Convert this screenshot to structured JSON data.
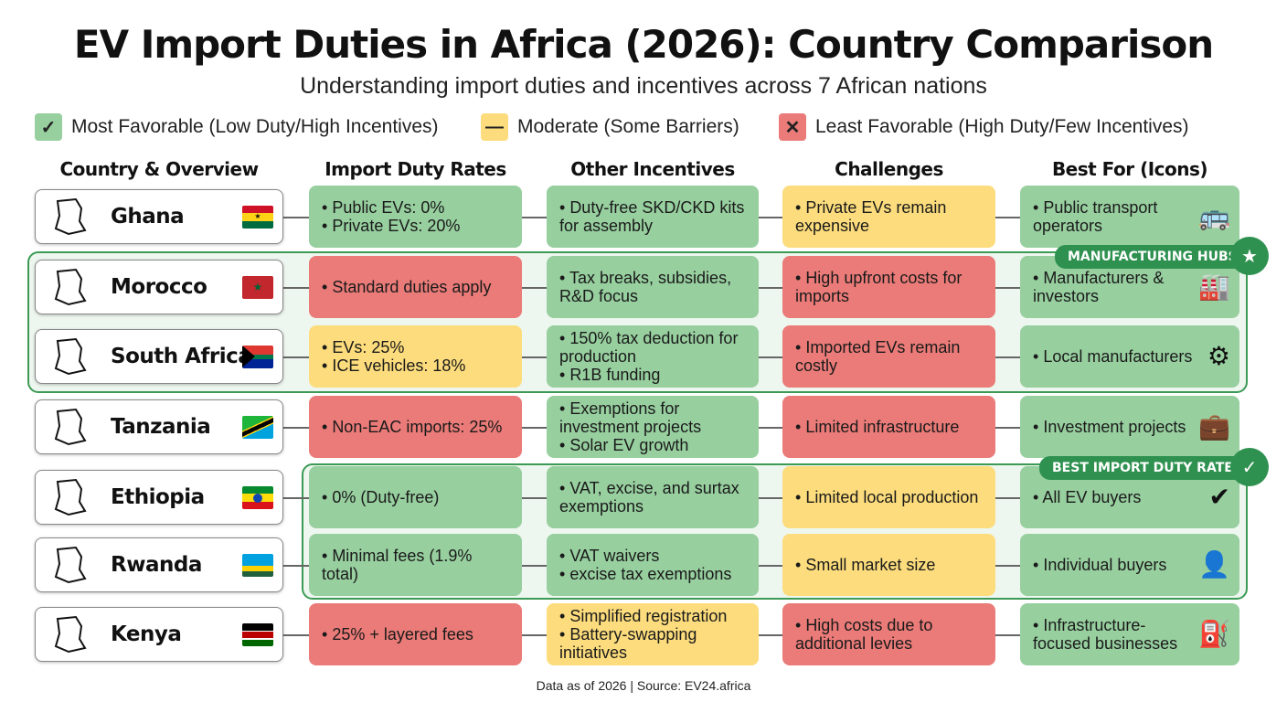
{
  "title": "EV Import Duties in Africa (2026): Country Comparison",
  "subtitle": "Understanding import duties and incentives across 7 African nations",
  "legend": [
    {
      "label": "Most Favorable (Low Duty/High Incentives)",
      "symbol": "✓",
      "color": "#97cf9f"
    },
    {
      "label": "Moderate (Some Barriers)",
      "symbol": "—",
      "color": "#fcdc7c"
    },
    {
      "label": "Least Favorable (High Duty/Few Incentives)",
      "symbol": "✕",
      "color": "#ea7b78"
    }
  ],
  "columns": [
    "Country & Overview",
    "Import Duty Rates",
    "Other Incentives",
    "Challenges",
    "Best For (Icons)"
  ],
  "colors": {
    "favorable": "#97cf9f",
    "moderate": "#fcdc7c",
    "unfavorable": "#ea7b78",
    "highlight": "#2f9150"
  },
  "badges": {
    "manufacturing": "MANUFACTURING HUBS",
    "best_duty": "BEST IMPORT DUTY RATES"
  },
  "rows": [
    {
      "country": "Ghana",
      "duty": {
        "s": "g",
        "items": [
          "Public EVs: 0%",
          "Private EVs: 20%"
        ]
      },
      "incentives": {
        "s": "g",
        "items": [
          "Duty-free SKD/CKD kits for assembly"
        ]
      },
      "challenges": {
        "s": "y",
        "items": [
          "Private EVs remain expensive"
        ]
      },
      "best": {
        "s": "g",
        "items": [
          "Public transport operators"
        ],
        "icon": "bus-icon"
      }
    },
    {
      "country": "Morocco",
      "duty": {
        "s": "r",
        "items": [
          "Standard duties apply"
        ]
      },
      "incentives": {
        "s": "g",
        "items": [
          "Tax breaks, subsidies, R&D focus"
        ]
      },
      "challenges": {
        "s": "r",
        "items": [
          "High upfront costs for imports"
        ]
      },
      "best": {
        "s": "g",
        "items": [
          "Manufacturers & investors"
        ],
        "icon": "factory-icon"
      }
    },
    {
      "country": "South Africa",
      "duty": {
        "s": "y",
        "items": [
          "EVs: 25%",
          "ICE vehicles: 18%"
        ]
      },
      "incentives": {
        "s": "g",
        "items": [
          "150% tax deduction for production",
          "R1B funding"
        ]
      },
      "challenges": {
        "s": "r",
        "items": [
          "Imported EVs remain costly"
        ]
      },
      "best": {
        "s": "g",
        "items": [
          "Local manufacturers"
        ],
        "icon": "assembly-line-icon"
      }
    },
    {
      "country": "Tanzania",
      "duty": {
        "s": "r",
        "items": [
          "Non-EAC imports: 25%"
        ]
      },
      "incentives": {
        "s": "g",
        "items": [
          "Exemptions for investment projects",
          "Solar EV growth"
        ]
      },
      "challenges": {
        "s": "r",
        "items": [
          "Limited infrastructure"
        ]
      },
      "best": {
        "s": "g",
        "items": [
          "Investment projects"
        ],
        "icon": "briefcase-icon"
      }
    },
    {
      "country": "Ethiopia",
      "duty": {
        "s": "g",
        "items": [
          "0% (Duty-free)"
        ]
      },
      "incentives": {
        "s": "g",
        "items": [
          "VAT, excise, and surtax exemptions"
        ]
      },
      "challenges": {
        "s": "y",
        "items": [
          "Limited local production"
        ]
      },
      "best": {
        "s": "g",
        "items": [
          "All EV buyers"
        ],
        "icon": "check-circle-icon"
      }
    },
    {
      "country": "Rwanda",
      "duty": {
        "s": "g",
        "items": [
          "Minimal fees (1.9% total)"
        ]
      },
      "incentives": {
        "s": "g",
        "items": [
          "VAT waivers",
          "excise tax exemptions"
        ]
      },
      "challenges": {
        "s": "y",
        "items": [
          "Small market size"
        ]
      },
      "best": {
        "s": "g",
        "items": [
          "Individual buyers"
        ],
        "icon": "person-icon"
      }
    },
    {
      "country": "Kenya",
      "duty": {
        "s": "r",
        "items": [
          "25% + layered fees"
        ]
      },
      "incentives": {
        "s": "y",
        "items": [
          "Simplified registration",
          "Battery-swapping initiatives"
        ]
      },
      "challenges": {
        "s": "r",
        "items": [
          "High costs due to additional levies"
        ]
      },
      "best": {
        "s": "g",
        "items": [
          "Infrastructure-focused businesses"
        ],
        "icon": "ev-charger-icon"
      }
    }
  ],
  "footer": "Data as of 2026 | Source: EV24.africa"
}
